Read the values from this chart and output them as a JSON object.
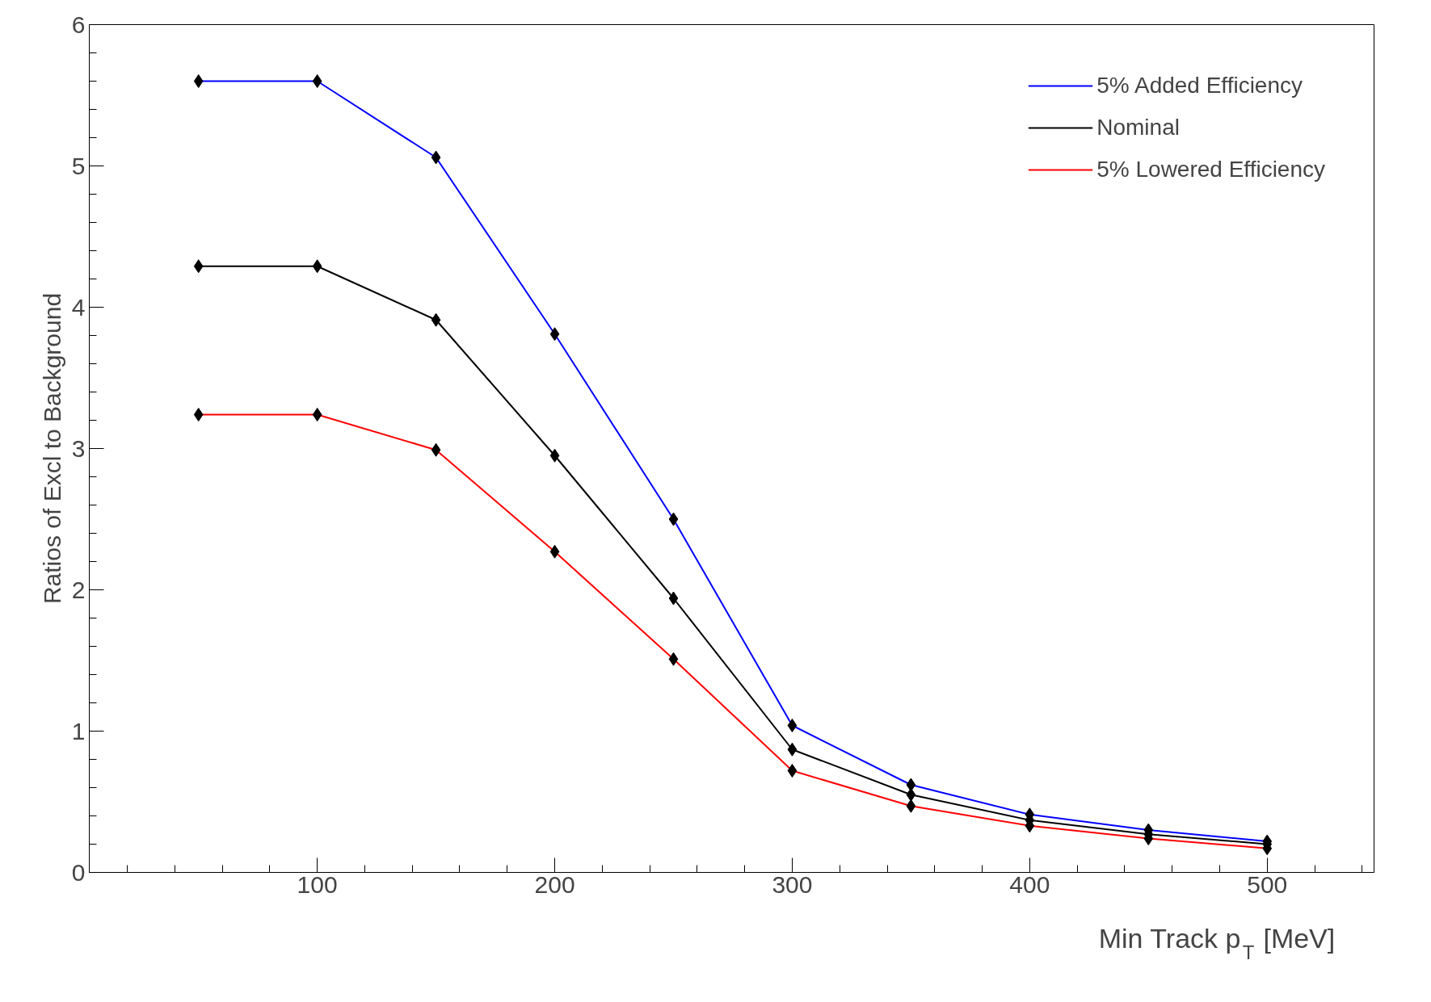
{
  "chart_data": {
    "type": "line",
    "xlabel": "Min Track p$_{T}$ [MeV]",
    "ylabel": "Ratios of Excl to Background",
    "x": [
      50,
      100,
      150,
      200,
      250,
      300,
      350,
      400,
      450,
      500
    ],
    "series": [
      {
        "name": "5% Added Efficiency",
        "color": "#0000ff",
        "values": [
          5.6,
          5.6,
          5.06,
          3.81,
          2.5,
          1.04,
          0.62,
          0.41,
          0.3,
          0.22
        ]
      },
      {
        "name": "Nominal",
        "color": "#000000",
        "values": [
          4.29,
          4.29,
          3.91,
          2.95,
          1.94,
          0.87,
          0.55,
          0.37,
          0.27,
          0.2
        ]
      },
      {
        "name": "5% Lowered Efficiency",
        "color": "#ff0000",
        "values": [
          3.24,
          3.24,
          2.99,
          2.27,
          1.51,
          0.72,
          0.47,
          0.33,
          0.24,
          0.17
        ]
      }
    ],
    "xlim": [
      4,
      545
    ],
    "ylim": [
      0,
      6
    ],
    "xticks": [
      100,
      200,
      300,
      400,
      500
    ],
    "yticks": [
      0,
      1,
      2,
      3,
      4,
      5,
      6
    ],
    "marker": "diamond",
    "grid": false,
    "legend": "top right"
  }
}
